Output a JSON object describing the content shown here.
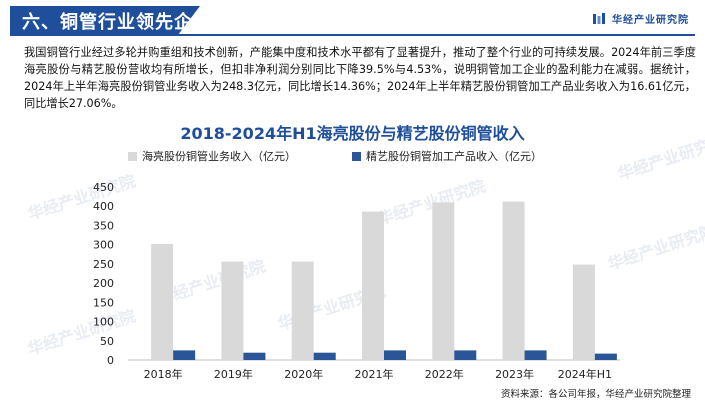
{
  "header": {
    "title": "六、铜管行业领先企业",
    "brand": "华经产业研究院"
  },
  "intro": "我国铜管行业经过多轮并购重组和技术创新，产能集中度和技术水平都有了显著提升，推动了整个行业的可持续发展。2024年前三季度海亮股份与精艺股份营收均有所增长，但扣非净利润分别同比下降39.5%与4.53%，说明铜管加工企业的盈利能力在减弱。据统计，2024年上半年海亮股份铜管业务收入为248.3亿元，同比增长14.36%；2024年上半年精艺股份铜管加工产品业务收入为16.61亿元，同比增长27.06%。",
  "chart_data": {
    "type": "bar",
    "title": "2018-2024年H1海亮股份与精艺股份铜管收入",
    "categories": [
      "2018年",
      "2019年",
      "2020年",
      "2021年",
      "2022年",
      "2023年",
      "2024年H1"
    ],
    "series": [
      {
        "name": "海亮股份铜管业务收入（亿元）",
        "color": "#d9d9d9",
        "values": [
          302,
          256,
          256,
          386,
          410,
          412,
          248.3
        ]
      },
      {
        "name": "精艺股份铜管加工产品收入（亿元）",
        "color": "#2a5597",
        "values": [
          25,
          19,
          19,
          25,
          25,
          25,
          16.61
        ]
      }
    ],
    "ylim": [
      0,
      450
    ],
    "yticks": [
      0,
      50,
      100,
      150,
      200,
      250,
      300,
      350,
      400,
      450
    ],
    "legend": "top",
    "grid": false
  },
  "source": "资料来源：各公司年报，华经产业研究院整理",
  "watermark": "华经产业研究院"
}
